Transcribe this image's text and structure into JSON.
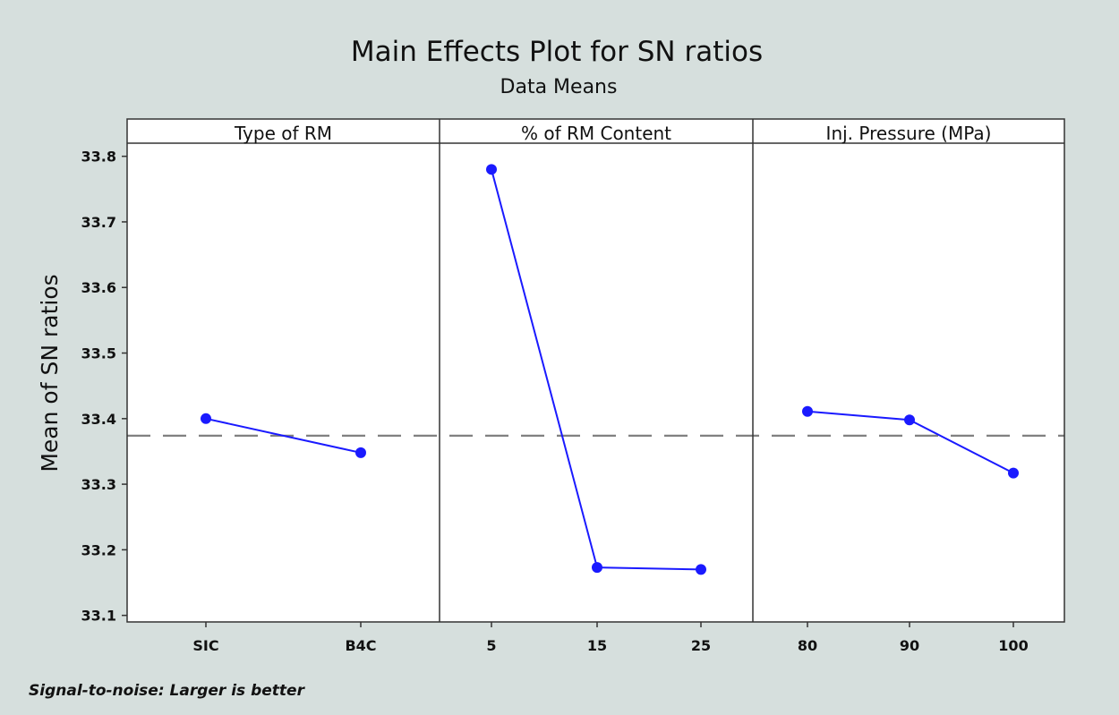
{
  "chart_data": {
    "type": "line",
    "title": "Main Effects Plot for SN ratios",
    "subtitle": "Data Means",
    "ylabel": "Mean of SN ratios",
    "ylim": [
      33.09,
      33.82
    ],
    "yticks": [
      33.1,
      33.2,
      33.3,
      33.4,
      33.5,
      33.6,
      33.7,
      33.8
    ],
    "overall_mean": 33.374,
    "footnote": "Signal-to-noise: Larger is better",
    "colors": {
      "series": "#1a1aff",
      "mean_line": "#808080",
      "background": "#d6dfdd",
      "plot": "#ffffff"
    },
    "panels": [
      {
        "name": "Type of RM",
        "categories": [
          "SIC",
          "B4C"
        ],
        "values": [
          33.4,
          33.348
        ]
      },
      {
        "name": "% of RM Content",
        "categories": [
          "5",
          "15",
          "25"
        ],
        "values": [
          33.78,
          33.173,
          33.17
        ]
      },
      {
        "name": "Inj. Pressure (MPa)",
        "categories": [
          "80",
          "90",
          "100"
        ],
        "values": [
          33.411,
          33.398,
          33.317
        ]
      }
    ]
  }
}
